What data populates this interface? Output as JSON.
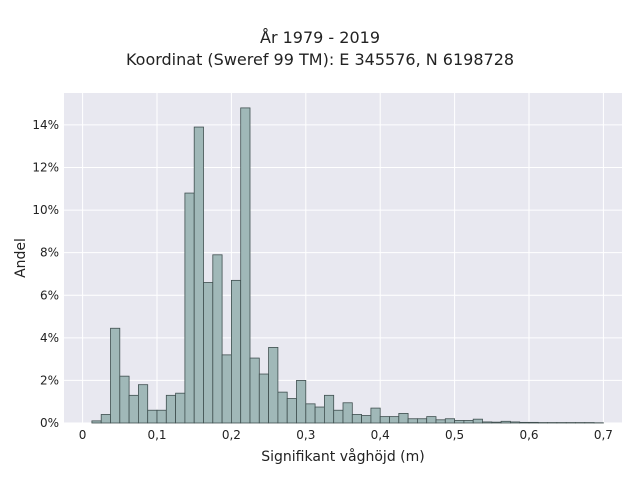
{
  "chart_data": {
    "type": "bar",
    "title_lines": [
      "År 1979 - 2019",
      "Koordinat (Sweref 99 TM): E 345576, N 6198728"
    ],
    "xlabel": "Signifikant våghöjd (m)",
    "ylabel": "Andel",
    "x_ticks": [
      "0",
      "0,1",
      "0,2",
      "0,3",
      "0,4",
      "0,5",
      "0,6",
      "0,7"
    ],
    "x_tick_values": [
      0,
      0.1,
      0.2,
      0.3,
      0.4,
      0.5,
      0.6,
      0.7
    ],
    "y_ticks": [
      "0%",
      "2%",
      "4%",
      "6%",
      "8%",
      "10%",
      "12%",
      "14%"
    ],
    "y_tick_values": [
      0,
      2,
      4,
      6,
      8,
      10,
      12,
      14
    ],
    "xlim": [
      -0.025,
      0.725
    ],
    "ylim": [
      0,
      15.5
    ],
    "bin_width": 0.0125,
    "bin_starts": [
      0.0125,
      0.025,
      0.0375,
      0.05,
      0.0625,
      0.075,
      0.0875,
      0.1,
      0.1125,
      0.125,
      0.1375,
      0.15,
      0.1625,
      0.175,
      0.1875,
      0.2,
      0.2125,
      0.225,
      0.2375,
      0.25,
      0.2625,
      0.275,
      0.2875,
      0.3,
      0.3125,
      0.325,
      0.3375,
      0.35,
      0.3625,
      0.375,
      0.3875,
      0.4,
      0.4125,
      0.425,
      0.4375,
      0.45,
      0.4625,
      0.475,
      0.4875,
      0.5,
      0.5125,
      0.525,
      0.5375,
      0.55,
      0.5625,
      0.575,
      0.5875,
      0.6,
      0.6125,
      0.625,
      0.6375,
      0.65,
      0.6625,
      0.675,
      0.6875
    ],
    "values": [
      0.1,
      0.4,
      4.45,
      2.2,
      1.3,
      1.8,
      0.6,
      0.6,
      1.3,
      1.4,
      10.8,
      13.9,
      6.6,
      7.9,
      3.2,
      6.7,
      14.8,
      3.05,
      2.3,
      3.55,
      1.45,
      1.15,
      2.0,
      0.9,
      0.75,
      1.3,
      0.6,
      0.95,
      0.4,
      0.35,
      0.7,
      0.3,
      0.3,
      0.45,
      0.2,
      0.2,
      0.3,
      0.15,
      0.2,
      0.12,
      0.12,
      0.18,
      0.05,
      0.04,
      0.08,
      0.05,
      0.03,
      0.03,
      0.02,
      0.02,
      0.02,
      0.02,
      0.02,
      0.02,
      0.01
    ],
    "grid": true,
    "colors": {
      "bar_fill": "#a0b8b8",
      "bar_edge": "#3f4f4f",
      "plot_bg": "#e8e8f0",
      "grid": "#ffffff"
    }
  }
}
